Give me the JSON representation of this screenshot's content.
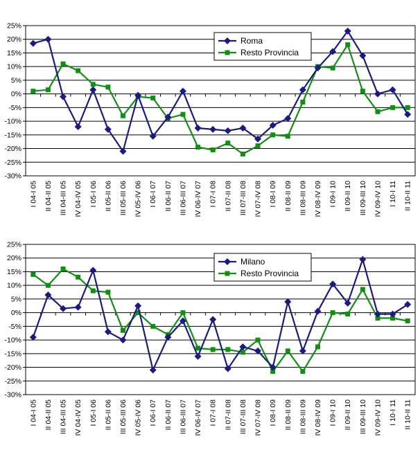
{
  "chart_data": [
    {
      "type": "line",
      "categories": [
        "I 04-I 05",
        "II 04-II 05",
        "III 04-III 05",
        "IV 04-IV 05",
        "I 05-I 06",
        "II 05-II 06",
        "III 05-III 06",
        "IV 05-IV 06",
        "I 06-I 07",
        "II 06-II 07",
        "III 06-III 07",
        "IV 06-IV 07",
        "I 07-I 08",
        "II 07-II 08",
        "III 07-III 08",
        "IV 07-IV 08",
        "I 08-I 09",
        "II 08-II 09",
        "III 08-III 09",
        "IV 08-IV 09",
        "I 09-I 10",
        "II 09-II 10",
        "III 09-III 10",
        "IV 09-IV 10",
        "I 10-I 11",
        "II 10-II 11"
      ],
      "y_ticks": [
        "25%",
        "20%",
        "15%",
        "10%",
        "5%",
        "0%",
        "-5%",
        "-10%",
        "-15%",
        "-20%",
        "-25%",
        "-30%"
      ],
      "ylim": [
        -30,
        25
      ],
      "legend_position": "top-right",
      "series": [
        {
          "name": "Roma",
          "color": "#1a1a80",
          "marker": "diamond",
          "values": [
            18.5,
            20,
            -1,
            -12,
            1.5,
            -13,
            -21,
            -0.5,
            -15.5,
            -8.5,
            1,
            -12.5,
            -13,
            -13.5,
            -12.5,
            -16.5,
            -11.5,
            -9,
            1.5,
            9.5,
            15.5,
            23,
            14,
            0,
            1.5,
            -7.5
          ]
        },
        {
          "name": "Resto Provincia",
          "color": "#109010",
          "marker": "square",
          "values": [
            1,
            1.5,
            11,
            8.5,
            3.5,
            2.5,
            -8,
            -1,
            -1.5,
            -9,
            -7.5,
            -19.5,
            -20.5,
            -18,
            -22,
            -19,
            -15,
            -15.5,
            -3,
            10,
            9.5,
            18,
            1,
            -6.5,
            -5,
            -5
          ]
        }
      ]
    },
    {
      "type": "line",
      "categories": [
        "I 04-I 05",
        "II 04-II 05",
        "III 04-III 05",
        "IV 04-IV 05",
        "I 05-I 06",
        "II 05-II 06",
        "III 05-III 06",
        "IV 05-IV 06",
        "I 06-I 07",
        "II 06-II 07",
        "III 06-III 07",
        "IV 06-IV 07",
        "I 07-I 08",
        "II 07-II 08",
        "III 07-III 08",
        "IV 07-IV 08",
        "I 08-I 09",
        "II 08-II 09",
        "III 08-III 09",
        "IV 08-IV 09",
        "I 09-I 10",
        "II 09-II 10",
        "III 09-III 10",
        "IV 09-IV 10",
        "I 10-I 11",
        "II 10-II 11"
      ],
      "y_ticks": [
        "25%",
        "20%",
        "15%",
        "10%",
        "5%",
        "0%",
        "-5%",
        "-10%",
        "-15%",
        "-20%",
        "-25%",
        "-30%"
      ],
      "ylim": [
        -30,
        25
      ],
      "legend_position": "top-right",
      "series": [
        {
          "name": "Milano",
          "color": "#1a1a80",
          "marker": "diamond",
          "values": [
            -9,
            6.5,
            1.5,
            2,
            15.5,
            -7,
            -10,
            2.5,
            -21,
            -9,
            -3,
            -16,
            -2.5,
            -20.5,
            -12.5,
            -14,
            -20,
            4,
            -14,
            0.5,
            10.5,
            3.5,
            19.5,
            -0.5,
            -0.5,
            3
          ]
        },
        {
          "name": "Resto Provincia",
          "color": "#109010",
          "marker": "square",
          "values": [
            14,
            10,
            16,
            13,
            8,
            7.5,
            -6.5,
            0,
            -5,
            -8,
            0,
            -13,
            -13.5,
            -13.5,
            -14.5,
            -10,
            -21.5,
            -14,
            -21.5,
            -12.5,
            0,
            -0.5,
            8.5,
            -2,
            -2,
            -3
          ]
        }
      ]
    }
  ]
}
